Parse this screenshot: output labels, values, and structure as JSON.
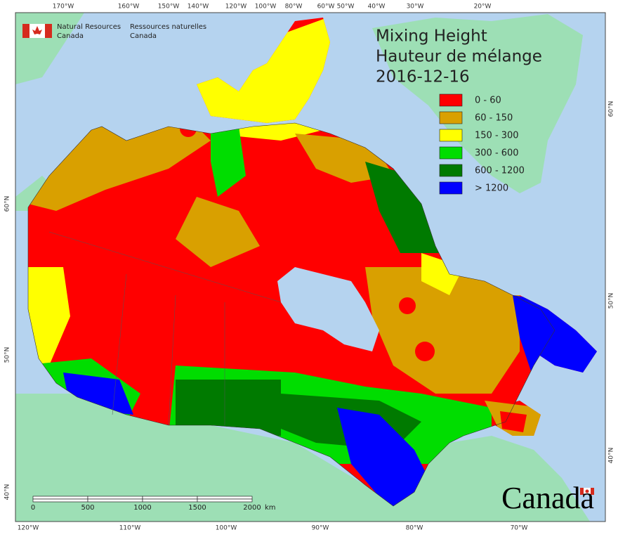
{
  "logo": {
    "english": [
      "Natural Resources",
      "Canada"
    ],
    "french": [
      "Ressources naturelles",
      "Canada"
    ]
  },
  "title": [
    "Mixing Height",
    "Hauteur de mélange",
    "2016-12-16"
  ],
  "legend": [
    {
      "label": "0 - 60",
      "color": "#ff0000"
    },
    {
      "label": "60 - 150",
      "color": "#d9a000"
    },
    {
      "label": "150 - 300",
      "color": "#ffff00"
    },
    {
      "label": "300 - 600",
      "color": "#00dd00"
    },
    {
      "label": "600 - 1200",
      "color": "#007a00"
    },
    {
      "label": "> 1200",
      "color": "#0000ff"
    }
  ],
  "graticule": {
    "top": [
      "170°W",
      "160°W",
      "150°W",
      "140°W",
      "120°W",
      "100°W",
      "80°W",
      "60°W",
      "50°W",
      "40°W",
      "30°W",
      "20°W"
    ],
    "bottom": [
      "120°W",
      "110°W",
      "100°W",
      "90°W",
      "80°W",
      "70°W"
    ],
    "left": [
      "60°N",
      "50°N",
      "40°N"
    ],
    "right": [
      "60°N",
      "50°N",
      "40°N"
    ]
  },
  "scale_bar": {
    "labels": [
      "0",
      "500",
      "1000",
      "1500",
      "2000"
    ],
    "unit": "km"
  },
  "wordmark": "Canada"
}
